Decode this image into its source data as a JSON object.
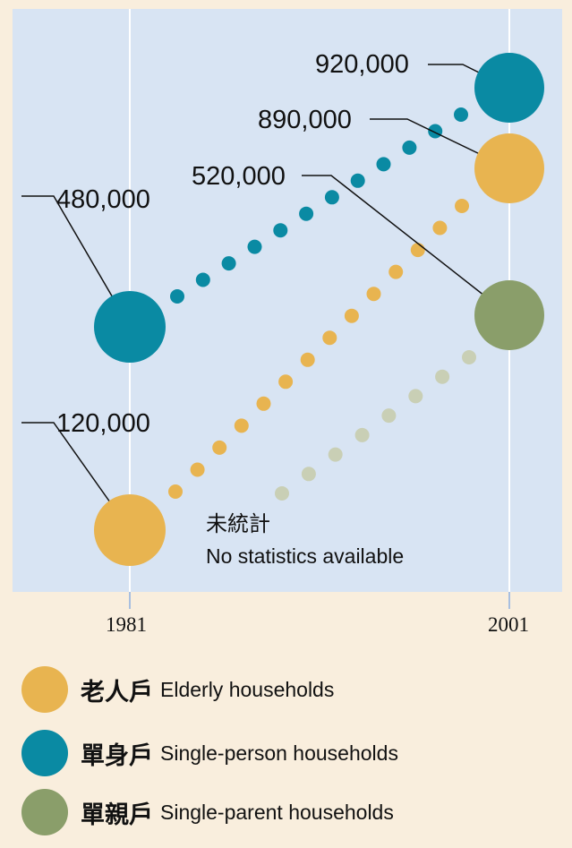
{
  "chart_data": {
    "type": "scatter",
    "categories": [
      "1981",
      "2001"
    ],
    "series": [
      {
        "name_zh": "老人戶",
        "name": "Elderly households",
        "color": "#e8b450",
        "values": [
          120000,
          890000
        ]
      },
      {
        "name_zh": "單身戶",
        "name": "Single-person households",
        "color": "#0a8aa3",
        "values": [
          480000,
          920000
        ]
      },
      {
        "name_zh": "單親戶",
        "name": "Single-parent households",
        "color": "#8a9e6a",
        "values": [
          null,
          520000
        ]
      }
    ],
    "annotation": {
      "zh": "未統計",
      "en": "No statistics available"
    },
    "value_labels": [
      "120,000",
      "480,000",
      "890,000",
      "920,000",
      "520,000"
    ]
  },
  "colors": {
    "plot_bg": "#d8e4f3",
    "page_bg": "#f9eedd",
    "faded_dot": "#c9cfb5"
  }
}
